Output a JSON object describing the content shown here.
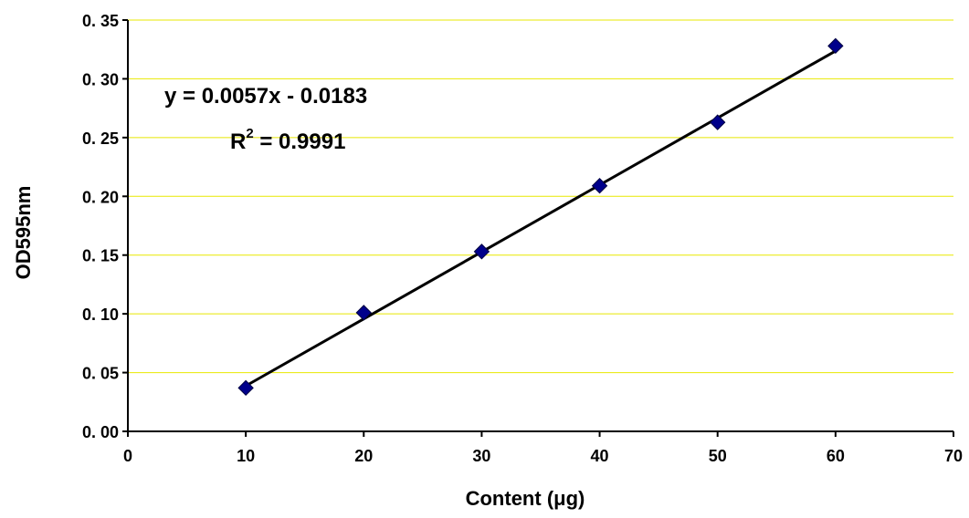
{
  "chart_data": {
    "type": "scatter",
    "xlabel": "Content (μg)",
    "ylabel": "OD595nm",
    "xlim": [
      0,
      70
    ],
    "ylim": [
      0,
      0.35
    ],
    "x_ticks": [
      "0",
      "10",
      "20",
      "30",
      "40",
      "50",
      "60",
      "70"
    ],
    "y_ticks": [
      "0. 00",
      "0. 05",
      "0. 10",
      "0. 15",
      "0. 20",
      "0. 25",
      "0. 30",
      "0. 35"
    ],
    "grid": "horizontal",
    "series": [
      {
        "x": [
          10,
          20,
          30,
          40,
          50,
          60
        ],
        "y": [
          0.037,
          0.101,
          0.153,
          0.209,
          0.263,
          0.328
        ],
        "marker": "diamond",
        "color": "#00008B"
      }
    ],
    "trendline": {
      "type": "linear",
      "slope": 0.0057,
      "intercept": -0.0183,
      "x_range": [
        10,
        60
      ],
      "color": "#000000"
    },
    "annotations": {
      "equation": "y = 0.0057x - 0.0183",
      "r2_prefix": "R",
      "r2_exponent": "2",
      "r2_value": " = 0.9991"
    },
    "colors": {
      "grid": "#E8E800",
      "marker": "#00008B",
      "marker_edge": "#000040"
    }
  }
}
